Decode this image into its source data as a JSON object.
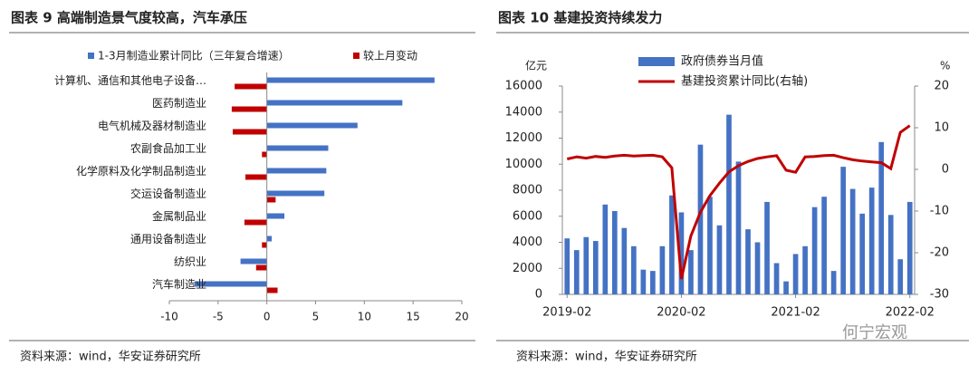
{
  "chart_data": [
    {
      "type": "bar",
      "orientation": "horizontal",
      "title": "图表 9  高端制造景气度较高，汽车承压",
      "categories": [
        "计算机、通信和其他电子设备…",
        "医药制造业",
        "电气机械及器材制造业",
        "农副食品加工业",
        "化学原料及化学制品制造业",
        "交运设备制造业",
        "金属制品业",
        "通用设备制造业",
        "纺织业",
        "汽车制造业"
      ],
      "series": [
        {
          "name": "1-3月制造业累计同比（三年复合增速）",
          "color": "#4472c4",
          "values": [
            17.2,
            13.9,
            9.3,
            6.3,
            6.1,
            5.9,
            1.8,
            0.5,
            -2.7,
            -7.4
          ]
        },
        {
          "name": "较上月变动",
          "color": "#c00000",
          "values": [
            -3.3,
            -3.6,
            -3.5,
            -0.5,
            -2.2,
            0.9,
            -2.3,
            -0.5,
            -1.1,
            1.1
          ]
        }
      ],
      "xlim": [
        -10,
        20
      ],
      "xticks": [
        -10,
        -5,
        0,
        5,
        10,
        15,
        20
      ],
      "source": "资料来源：wind，华安证券研究所"
    },
    {
      "type": "combo",
      "title": "图表 10  基建投资持续发力",
      "categories": [
        "2019-02",
        null,
        null,
        null,
        null,
        null,
        null,
        null,
        null,
        null,
        null,
        null,
        "2020-02",
        null,
        null,
        null,
        null,
        null,
        null,
        null,
        null,
        null,
        null,
        null,
        "2021-02",
        null,
        null,
        null,
        null,
        null,
        null,
        null,
        null,
        null,
        null,
        null,
        "2022-02"
      ],
      "series": [
        {
          "name": "政府债券当月值",
          "type": "bar",
          "color": "#4472c4",
          "values": [
            4300,
            3400,
            4400,
            4100,
            6900,
            6400,
            5100,
            3700,
            1900,
            1800,
            3700,
            7600,
            6300,
            3400,
            11500,
            7500,
            5300,
            13800,
            10200,
            5000,
            4000,
            7100,
            2400,
            1000,
            3100,
            3700,
            6700,
            7500,
            1800,
            9800,
            8100,
            6200,
            8200,
            11700,
            6100,
            2700,
            7100
          ]
        },
        {
          "name": "基建投资累计同比(右轴)",
          "type": "line",
          "axis": "y2",
          "color": "#c00000",
          "values": [
            2.5,
            3.0,
            2.7,
            3.1,
            2.9,
            3.2,
            3.4,
            3.2,
            3.3,
            3.4,
            3.0,
            0.4,
            -26.3,
            -16,
            -10.3,
            -6.3,
            -3.3,
            -0.6,
            0.9,
            1.9,
            2.6,
            3.0,
            3.3,
            -0.2,
            -0.7,
            3.0,
            3.1,
            3.3,
            3.4,
            2.8,
            2.3,
            2.0,
            1.8,
            1.6,
            0.2,
            8.9,
            10.5
          ]
        }
      ],
      "ylabel": "亿元",
      "y2label": "%",
      "ylim": [
        0,
        16000
      ],
      "yticks": [
        0,
        2000,
        4000,
        6000,
        8000,
        10000,
        12000,
        14000,
        16000
      ],
      "y2lim": [
        -30,
        20
      ],
      "y2ticks": [
        -30,
        -20,
        -10,
        0,
        10,
        20
      ],
      "source": "资料来源：wind，华安证券研究所"
    }
  ],
  "watermark": "何宁宏观"
}
